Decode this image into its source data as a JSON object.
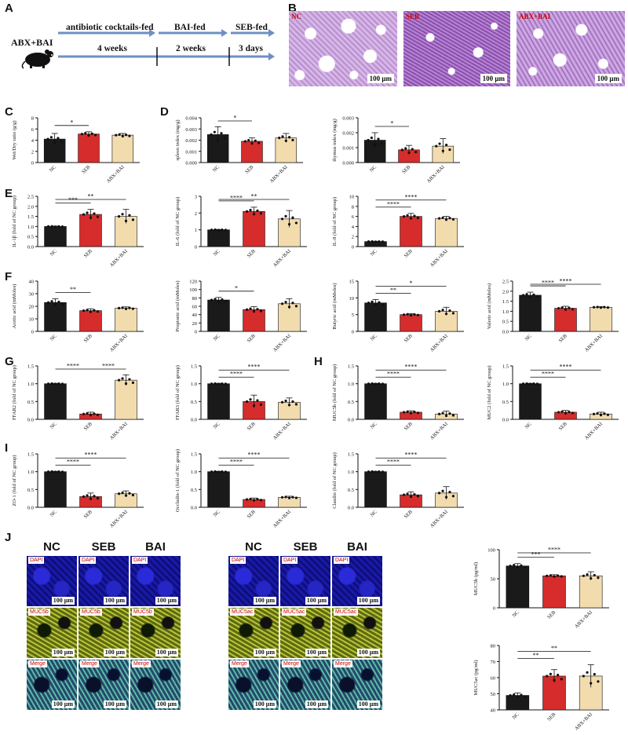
{
  "panel_letters": [
    "A",
    "B",
    "C",
    "D",
    "E",
    "F",
    "G",
    "H",
    "I",
    "J"
  ],
  "timeline": {
    "group_label": "ABX+BAI",
    "stages": [
      {
        "label": "antibiotic cocktails-fed",
        "duration": "4 weeks"
      },
      {
        "label": "BAI-fed",
        "duration": "2 weeks"
      },
      {
        "label": "SEB-fed",
        "duration": "3 days"
      }
    ]
  },
  "histology": {
    "labels": [
      "NC",
      "SEB",
      "ABX+BAI"
    ],
    "scale": "100 μm"
  },
  "fluorescence": {
    "group_headers": [
      "NC",
      "SEB",
      "BAI"
    ],
    "left_row_labels": [
      "DAPI",
      "MUC5b",
      "Merge"
    ],
    "right_row_labels": [
      "DAPI",
      "MUC5ac",
      "Merge"
    ],
    "scale": "100 μm"
  },
  "colors": {
    "NC": "#1a1a1a",
    "SEB": "#d62c2c",
    "ABX": "#f2dcae"
  },
  "chart_data": [
    {
      "id": "C",
      "type": "bar",
      "ylabel": "Wet/Dry ratio (g/g)",
      "categories": [
        "NC",
        "SEB",
        "ABX+BAI"
      ],
      "values": [
        4.2,
        5.1,
        4.9
      ],
      "errors": [
        1.0,
        0.4,
        0.3
      ],
      "ylim": [
        0,
        8
      ],
      "ticks": [
        0,
        2,
        4,
        6,
        8
      ],
      "sig": [
        {
          "from": 0,
          "to": 1,
          "text": "*"
        }
      ]
    },
    {
      "id": "D1",
      "type": "bar",
      "ylabel": "spleen index (mg/g)",
      "categories": [
        "NC",
        "SEB",
        "ABX+BAI"
      ],
      "values": [
        0.0025,
        0.0019,
        0.0022
      ],
      "errors": [
        0.0007,
        0.0003,
        0.0004
      ],
      "ylim": [
        0,
        0.004
      ],
      "ticks": [
        0,
        0.001,
        0.002,
        0.003,
        0.004
      ],
      "tick_labels": [
        "0.000",
        "0.001",
        "0.002",
        "0.003",
        "0.004"
      ],
      "sig": [
        {
          "from": 0,
          "to": 1,
          "text": "*"
        }
      ]
    },
    {
      "id": "D2",
      "type": "bar",
      "ylabel": "thymus index (mg/g)",
      "categories": [
        "NC",
        "SEB",
        "ABX+BAI"
      ],
      "values": [
        0.0015,
        0.00085,
        0.0011
      ],
      "errors": [
        0.0005,
        0.0003,
        0.0005
      ],
      "ylim": [
        0,
        0.003
      ],
      "ticks": [
        0,
        0.001,
        0.002,
        0.003
      ],
      "tick_labels": [
        "0.000",
        "0.001",
        "0.002",
        "0.003"
      ],
      "sig": [
        {
          "from": 0,
          "to": 1,
          "text": "*"
        }
      ]
    },
    {
      "id": "E1",
      "type": "bar",
      "ylabel": "IL-1β (fold of NC group)",
      "categories": [
        "NC",
        "SEB",
        "ABX+BAI"
      ],
      "values": [
        1.0,
        1.6,
        1.5
      ],
      "errors": [
        0.02,
        0.25,
        0.35
      ],
      "ylim": [
        0,
        2.5
      ],
      "ticks": [
        0,
        0.5,
        1.0,
        1.5,
        2.0,
        2.5
      ],
      "tick_labels": [
        "0.0",
        "0.5",
        "1.0",
        "1.5",
        "2.0",
        "2.5"
      ],
      "sig": [
        {
          "from": 0,
          "to": 1,
          "text": "***"
        },
        {
          "from": 0,
          "to": 2,
          "text": "**"
        }
      ]
    },
    {
      "id": "E2",
      "type": "bar",
      "ylabel": "IL-6 (fold of NC group)",
      "categories": [
        "NC",
        "SEB",
        "ABX+BAI"
      ],
      "values": [
        1.0,
        2.1,
        1.65
      ],
      "errors": [
        0.02,
        0.25,
        0.5
      ],
      "ylim": [
        0,
        3
      ],
      "ticks": [
        0,
        1,
        2,
        3
      ],
      "tick_labels": [
        "0",
        "1",
        "2",
        "3"
      ],
      "sig": [
        {
          "from": 0,
          "to": 1,
          "text": "****"
        },
        {
          "from": 0,
          "to": 2,
          "text": "**"
        }
      ]
    },
    {
      "id": "E3",
      "type": "bar",
      "ylabel": "IL-8 (fold of NC group)",
      "categories": [
        "NC",
        "SEB",
        "ABX+BAI"
      ],
      "values": [
        1.0,
        6.0,
        5.6
      ],
      "errors": [
        0.05,
        0.6,
        0.4
      ],
      "ylim": [
        0,
        10
      ],
      "ticks": [
        0,
        2,
        4,
        6,
        8,
        10
      ],
      "tick_labels": [
        "0",
        "2",
        "4",
        "6",
        "8",
        "10"
      ],
      "sig": [
        {
          "from": 0,
          "to": 1,
          "text": "****"
        },
        {
          "from": 0,
          "to": 2,
          "text": "****"
        }
      ]
    },
    {
      "id": "F1",
      "type": "bar",
      "ylabel": "Acetic acid (mMoles)",
      "categories": [
        "NC",
        "SEB",
        "ABX+BAI"
      ],
      "values": [
        23,
        16.5,
        18.5
      ],
      "errors": [
        3.0,
        1.5,
        1.0
      ],
      "ylim": [
        0,
        40
      ],
      "ticks": [
        0,
        10,
        20,
        30,
        40
      ],
      "tick_labels": [
        "0",
        "10",
        "20",
        "30",
        "40"
      ],
      "sig": [
        {
          "from": 0,
          "to": 1,
          "text": "**"
        }
      ]
    },
    {
      "id": "F2",
      "type": "bar",
      "ylabel": "Propionic acid (mMoles)",
      "categories": [
        "NC",
        "SEB",
        "ABX+BAI"
      ],
      "values": [
        75,
        52,
        66
      ],
      "errors": [
        6,
        7,
        12
      ],
      "ylim": [
        0,
        120
      ],
      "ticks": [
        0,
        20,
        40,
        60,
        80,
        100,
        120
      ],
      "tick_labels": [
        "0",
        "20",
        "40",
        "60",
        "80",
        "100",
        "120"
      ],
      "sig": [
        {
          "from": 0,
          "to": 1,
          "text": "*"
        }
      ]
    },
    {
      "id": "F3",
      "type": "bar",
      "ylabel": "Butyric acid (mMoles)",
      "categories": [
        "NC",
        "SEB",
        "ABX+BAI"
      ],
      "values": [
        8.5,
        5.0,
        6.0
      ],
      "errors": [
        1.0,
        0.3,
        1.2
      ],
      "ylim": [
        0,
        15
      ],
      "ticks": [
        0,
        5,
        10,
        15
      ],
      "tick_labels": [
        "0",
        "5",
        "10",
        "15"
      ],
      "sig": [
        {
          "from": 0,
          "to": 1,
          "text": "**"
        },
        {
          "from": 0,
          "to": 2,
          "text": "*"
        }
      ]
    },
    {
      "id": "F4",
      "type": "bar",
      "ylabel": "Valeric acid (mMoles)",
      "categories": [
        "NC",
        "SEB",
        "ABX+BAI"
      ],
      "values": [
        1.8,
        1.15,
        1.2
      ],
      "errors": [
        0.15,
        0.1,
        0.03
      ],
      "ylim": [
        0,
        2.5
      ],
      "ticks": [
        0,
        0.5,
        1.0,
        1.5,
        2.0,
        2.5
      ],
      "tick_labels": [
        "0.0",
        "0.5",
        "1.0",
        "1.5",
        "2.0",
        "2.5"
      ],
      "sig": [
        {
          "from": 0,
          "to": 1,
          "text": "****"
        },
        {
          "from": 0,
          "to": 2,
          "text": "****"
        }
      ]
    },
    {
      "id": "G1",
      "type": "bar",
      "ylabel": "FFAR2 (fold of NC group)",
      "categories": [
        "NC",
        "SEB",
        "ABX+BAI"
      ],
      "values": [
        1.0,
        0.15,
        1.1
      ],
      "errors": [
        0.01,
        0.05,
        0.15
      ],
      "ylim": [
        0,
        1.5
      ],
      "ticks": [
        0,
        0.5,
        1.0,
        1.5
      ],
      "tick_labels": [
        "0.0",
        "0.5",
        "1.0",
        "1.5"
      ],
      "sig": [
        {
          "from": 0,
          "to": 1,
          "text": "****"
        },
        {
          "from": 1,
          "to": 2,
          "text": "****"
        }
      ]
    },
    {
      "id": "G2",
      "type": "bar",
      "ylabel": "FFAR3 (fold of NC group)",
      "categories": [
        "NC",
        "SEB",
        "ABX+BAI"
      ],
      "values": [
        1.0,
        0.5,
        0.48
      ],
      "errors": [
        0.01,
        0.18,
        0.12
      ],
      "ylim": [
        0,
        1.5
      ],
      "ticks": [
        0,
        0.5,
        1.0,
        1.5
      ],
      "tick_labels": [
        "0.0",
        "0.5",
        "1.0",
        "1.5"
      ],
      "sig": [
        {
          "from": 0,
          "to": 1,
          "text": "****"
        },
        {
          "from": 0,
          "to": 2,
          "text": "****"
        }
      ]
    },
    {
      "id": "H1",
      "type": "bar",
      "ylabel": "MUC5b (fold of NC group)",
      "categories": [
        "NC",
        "SEB",
        "ABX+BAI"
      ],
      "values": [
        1.0,
        0.2,
        0.15
      ],
      "errors": [
        0.01,
        0.04,
        0.08
      ],
      "ylim": [
        0,
        1.5
      ],
      "ticks": [
        0,
        0.5,
        1.0,
        1.5
      ],
      "tick_labels": [
        "0.0",
        "0.5",
        "1.0",
        "1.5"
      ],
      "sig": [
        {
          "from": 0,
          "to": 1,
          "text": "****"
        },
        {
          "from": 0,
          "to": 2,
          "text": "****"
        }
      ]
    },
    {
      "id": "H2",
      "type": "bar",
      "ylabel": "MUC2 (fold of NC group)",
      "categories": [
        "NC",
        "SEB",
        "ABX+BAI"
      ],
      "values": [
        1.0,
        0.2,
        0.15
      ],
      "errors": [
        0.01,
        0.05,
        0.05
      ],
      "ylim": [
        0,
        1.5
      ],
      "ticks": [
        0,
        0.5,
        1.0,
        1.5
      ],
      "tick_labels": [
        "0.0",
        "0.5",
        "1.0",
        "1.5"
      ],
      "sig": [
        {
          "from": 0,
          "to": 1,
          "text": "****"
        },
        {
          "from": 0,
          "to": 2,
          "text": "****"
        }
      ]
    },
    {
      "id": "I1",
      "type": "bar",
      "ylabel": "ZO-1 (fold of NC group)",
      "categories": [
        "NC",
        "SEB",
        "ABX+BAI"
      ],
      "values": [
        1.0,
        0.3,
        0.38
      ],
      "errors": [
        0.01,
        0.1,
        0.08
      ],
      "ylim": [
        0,
        1.5
      ],
      "ticks": [
        0,
        0.5,
        1.0,
        1.5
      ],
      "tick_labels": [
        "0.0",
        "0.5",
        "1.0",
        "1.5"
      ],
      "sig": [
        {
          "from": 0,
          "to": 1,
          "text": "****"
        },
        {
          "from": 0,
          "to": 2,
          "text": "****"
        }
      ]
    },
    {
      "id": "I2",
      "type": "bar",
      "ylabel": "Occludin-1 (fold of NC group)",
      "categories": [
        "NC",
        "SEB",
        "ABX+BAI"
      ],
      "values": [
        1.0,
        0.22,
        0.28
      ],
      "errors": [
        0.01,
        0.04,
        0.03
      ],
      "ylim": [
        0,
        1.5
      ],
      "ticks": [
        0,
        0.5,
        1.0,
        1.5
      ],
      "tick_labels": [
        "0.0",
        "0.5",
        "1.0",
        "1.5"
      ],
      "sig": [
        {
          "from": 0,
          "to": 1,
          "text": "****"
        },
        {
          "from": 0,
          "to": 2,
          "text": "****"
        }
      ]
    },
    {
      "id": "I3",
      "type": "bar",
      "ylabel": "Claudin (fold of NC group)",
      "categories": [
        "NC",
        "SEB",
        "ABX+BAI"
      ],
      "values": [
        1.0,
        0.35,
        0.4
      ],
      "errors": [
        0.01,
        0.08,
        0.18
      ],
      "ylim": [
        0,
        1.5
      ],
      "ticks": [
        0,
        0.5,
        1.0,
        1.5
      ],
      "tick_labels": [
        "0.0",
        "0.5",
        "1.0",
        "1.5"
      ],
      "sig": [
        {
          "from": 0,
          "to": 1,
          "text": "****"
        },
        {
          "from": 0,
          "to": 2,
          "text": "****"
        }
      ]
    },
    {
      "id": "J1",
      "type": "bar",
      "ylabel": "MUC5b (pg/ml)",
      "categories": [
        "NC",
        "SEB",
        "ABX+BAI"
      ],
      "values": [
        72,
        55,
        55
      ],
      "errors": [
        4,
        2,
        7
      ],
      "ylim": [
        0,
        100
      ],
      "ticks": [
        0,
        50,
        100
      ],
      "tick_labels": [
        "0",
        "50",
        "100"
      ],
      "sig": [
        {
          "from": 0,
          "to": 1,
          "text": "***"
        },
        {
          "from": 0,
          "to": 2,
          "text": "****"
        }
      ]
    },
    {
      "id": "J2",
      "type": "bar",
      "ylabel": "MUC5ac (pg/ml)",
      "categories": [
        "NC",
        "SEB",
        "ABX+BAI"
      ],
      "values": [
        49,
        61,
        61
      ],
      "errors": [
        1.5,
        4,
        7
      ],
      "ylim": [
        40,
        80
      ],
      "ticks": [
        40,
        50,
        60,
        70,
        80
      ],
      "tick_labels": [
        "40",
        "50",
        "60",
        "70",
        "80"
      ],
      "sig": [
        {
          "from": 0,
          "to": 1,
          "text": "**"
        },
        {
          "from": 0,
          "to": 2,
          "text": "**"
        }
      ]
    }
  ]
}
